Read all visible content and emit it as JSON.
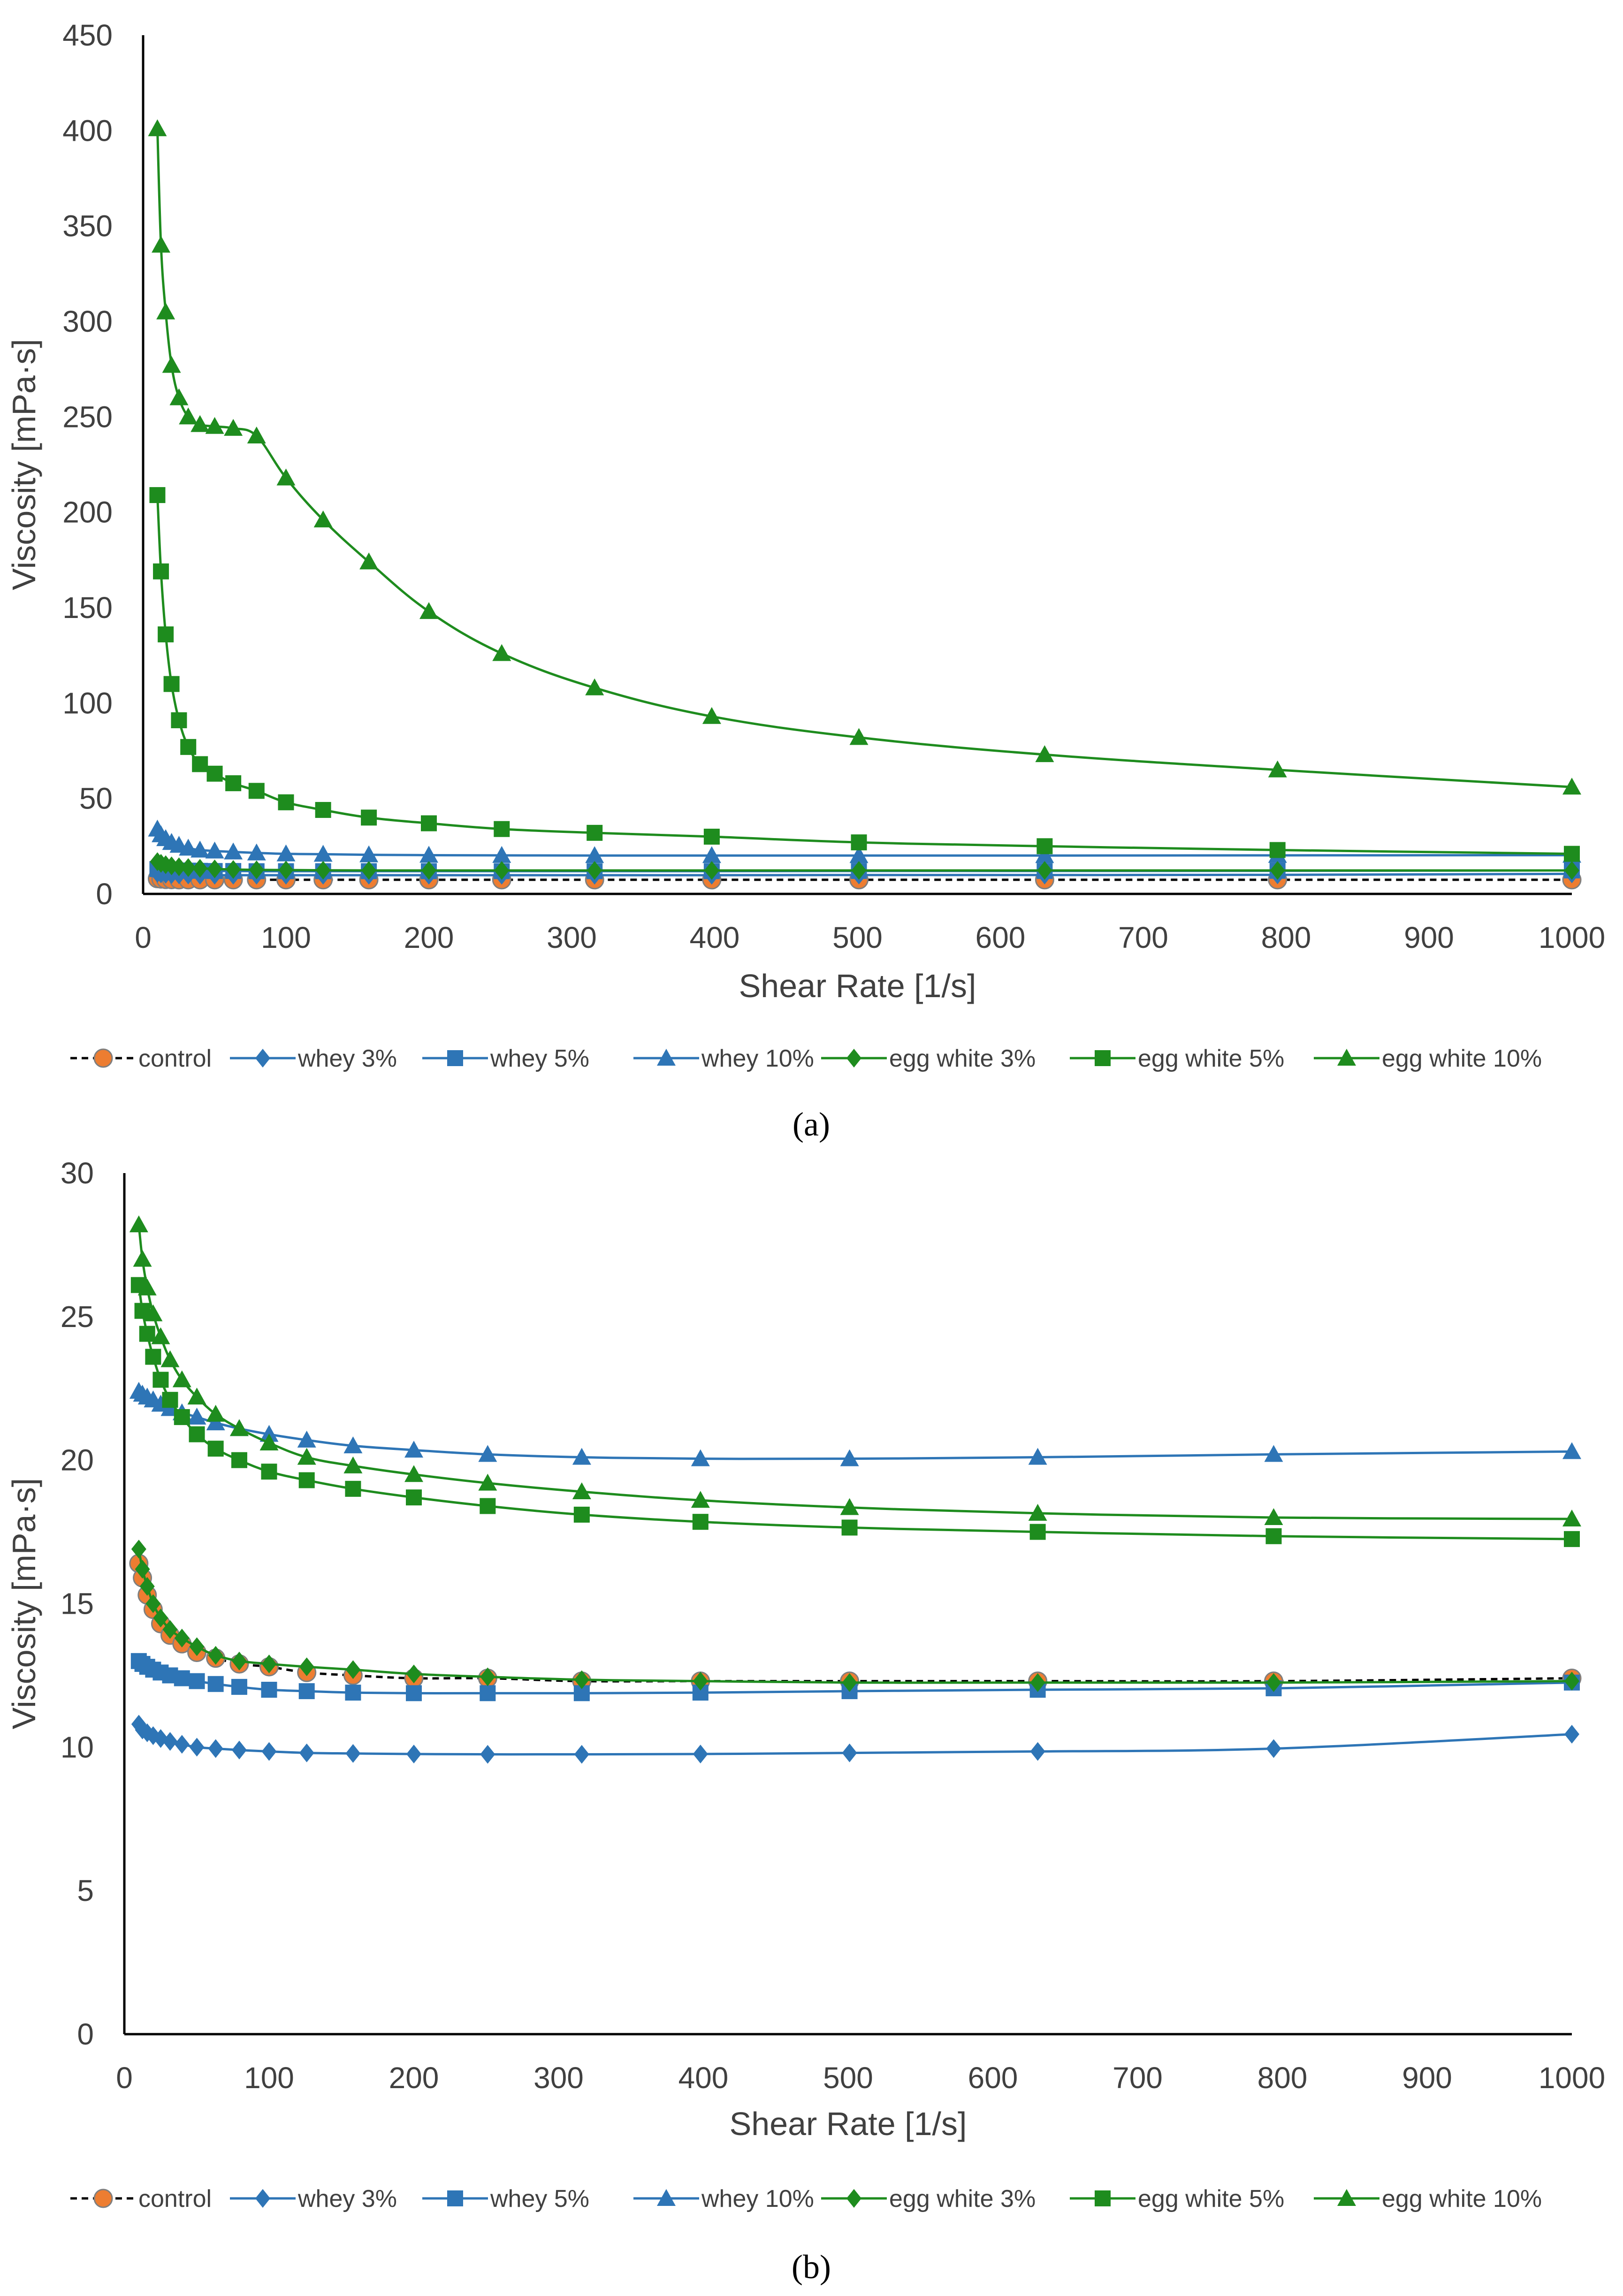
{
  "colors": {
    "control_line": "#000000",
    "control_marker": "#ED7D31",
    "blue": "#2E75B6",
    "green": "#1E8C1E",
    "axis": "#000000",
    "text": "#404040"
  },
  "chart_data": [
    {
      "type": "line",
      "panel_label": "(a)",
      "xlabel": "Shear Rate [1/s]",
      "ylabel": "Viscosity [mPa·s]",
      "xlim": [
        0,
        1000
      ],
      "ylim": [
        0,
        450
      ],
      "x_ticks": [
        "0",
        "100",
        "200",
        "300",
        "400",
        "500",
        "600",
        "700",
        "800",
        "900",
        "1000"
      ],
      "y_ticks": [
        "0",
        "50",
        "100",
        "150",
        "200",
        "250",
        "300",
        "350",
        "400",
        "450"
      ],
      "x": [
        10,
        12.5,
        15.8,
        19.9,
        25.1,
        31.6,
        39.8,
        50.1,
        63.1,
        79.4,
        100,
        126,
        158,
        200,
        251,
        316,
        398,
        501,
        631,
        794,
        1000
      ],
      "legend": [
        "control",
        "whey 3%",
        "whey 5%",
        "whey 10%",
        "egg white 3%",
        "egg white 5%",
        "egg white 10%"
      ],
      "series": [
        {
          "name": "control",
          "line": "dashed",
          "marker": "circle",
          "values": [
            8.0,
            7.8,
            7.6,
            7.5,
            7.4,
            7.4,
            7.4,
            7.4,
            7.4,
            7.4,
            7.4,
            7.4,
            7.4,
            7.4,
            7.4,
            7.4,
            7.4,
            7.4,
            7.4,
            7.4,
            7.4
          ]
        },
        {
          "name": "whey 3%",
          "line": "solid",
          "marker": "diamond",
          "values": [
            10.8,
            10.5,
            10.3,
            10.1,
            10.0,
            9.9,
            9.8,
            9.8,
            9.8,
            9.8,
            9.8,
            9.8,
            9.8,
            9.8,
            9.8,
            9.8,
            9.8,
            9.9,
            9.9,
            10.0,
            10.5
          ]
        },
        {
          "name": "whey 5%",
          "line": "solid",
          "marker": "square",
          "values": [
            13.0,
            12.8,
            12.6,
            12.4,
            12.3,
            12.2,
            12.1,
            12.0,
            12.0,
            11.9,
            11.9,
            11.9,
            11.9,
            11.9,
            11.9,
            11.9,
            11.9,
            12.0,
            12.0,
            12.1,
            12.3
          ]
        },
        {
          "name": "whey 10%",
          "line": "solid",
          "marker": "triangle",
          "values": [
            34.0,
            31.0,
            29.0,
            27.0,
            25.5,
            24.0,
            23.0,
            22.5,
            22.0,
            21.5,
            21.0,
            20.8,
            20.5,
            20.3,
            20.2,
            20.1,
            20.1,
            20.1,
            20.1,
            20.2,
            20.3
          ]
        },
        {
          "name": "egg white 3%",
          "line": "solid",
          "marker": "diamond",
          "values": [
            16.9,
            16.0,
            15.3,
            14.7,
            14.2,
            13.8,
            13.4,
            13.1,
            12.8,
            12.6,
            12.5,
            12.4,
            12.3,
            12.3,
            12.3,
            12.3,
            12.3,
            12.3,
            12.3,
            12.3,
            12.3
          ]
        },
        {
          "name": "egg white 5%",
          "line": "solid",
          "marker": "square",
          "values": [
            209.0,
            169.0,
            136.0,
            110.0,
            91.0,
            77.0,
            68.0,
            63.0,
            58.0,
            54.0,
            48.0,
            44.0,
            40.0,
            37.0,
            34.0,
            32.0,
            30.0,
            27.0,
            25.0,
            23.0,
            21.0
          ]
        },
        {
          "name": "egg white 10%",
          "line": "solid",
          "marker": "triangle",
          "values": [
            401.0,
            340.0,
            305.0,
            277.0,
            260.0,
            250.0,
            246.0,
            245.0,
            244.0,
            240.0,
            218.0,
            196.0,
            174.0,
            148.0,
            126.0,
            108.0,
            93.0,
            82.0,
            73.0,
            65.0,
            56.0
          ]
        }
      ]
    },
    {
      "type": "line",
      "panel_label": "(b)",
      "xlabel": "Shear Rate [1/s]",
      "ylabel": "Viscosity [mPa·s]",
      "xlim": [
        0,
        1000
      ],
      "ylim": [
        0,
        30
      ],
      "x_ticks": [
        "0",
        "100",
        "200",
        "300",
        "400",
        "500",
        "600",
        "700",
        "800",
        "900",
        "1000"
      ],
      "y_ticks": [
        "0",
        "5",
        "10",
        "15",
        "20",
        "25",
        "30"
      ],
      "x": [
        10,
        12.5,
        15.8,
        19.9,
        25.1,
        31.6,
        39.8,
        50.1,
        63.1,
        79.4,
        100,
        126,
        158,
        200,
        251,
        316,
        398,
        501,
        631,
        794,
        1000
      ],
      "legend": [
        "control",
        "whey 3%",
        "whey 5%",
        "whey 10%",
        "egg white 3%",
        "egg white 5%",
        "egg white 10%"
      ],
      "series": [
        {
          "name": "control",
          "line": "dashed",
          "marker": "circle",
          "values": [
            16.4,
            15.9,
            15.3,
            14.8,
            14.3,
            13.9,
            13.6,
            13.3,
            13.1,
            12.9,
            12.8,
            12.6,
            12.5,
            12.4,
            12.4,
            12.3,
            12.3,
            12.3,
            12.3,
            12.3,
            12.4
          ]
        },
        {
          "name": "whey 3%",
          "line": "solid",
          "marker": "diamond",
          "values": [
            10.8,
            10.6,
            10.5,
            10.4,
            10.3,
            10.2,
            10.1,
            10.0,
            9.95,
            9.9,
            9.85,
            9.8,
            9.78,
            9.76,
            9.75,
            9.75,
            9.76,
            9.8,
            9.85,
            9.95,
            10.45
          ]
        },
        {
          "name": "whey 5%",
          "line": "solid",
          "marker": "square",
          "values": [
            13.0,
            12.9,
            12.8,
            12.7,
            12.6,
            12.5,
            12.4,
            12.3,
            12.2,
            12.1,
            12.0,
            11.95,
            11.9,
            11.88,
            11.88,
            11.88,
            11.9,
            11.95,
            12.0,
            12.05,
            12.25
          ]
        },
        {
          "name": "whey 10%",
          "line": "solid",
          "marker": "triangle",
          "values": [
            22.4,
            22.3,
            22.2,
            22.1,
            21.95,
            21.8,
            21.65,
            21.5,
            21.3,
            21.1,
            20.9,
            20.7,
            20.5,
            20.35,
            20.2,
            20.1,
            20.05,
            20.05,
            20.1,
            20.2,
            20.3
          ]
        },
        {
          "name": "egg white 3%",
          "line": "solid",
          "marker": "diamond",
          "values": [
            16.9,
            16.2,
            15.6,
            15.0,
            14.5,
            14.1,
            13.8,
            13.5,
            13.2,
            13.0,
            12.9,
            12.8,
            12.7,
            12.55,
            12.45,
            12.35,
            12.3,
            12.25,
            12.25,
            12.25,
            12.3
          ]
        },
        {
          "name": "egg white 5%",
          "line": "solid",
          "marker": "square",
          "values": [
            26.1,
            25.2,
            24.4,
            23.6,
            22.8,
            22.1,
            21.5,
            20.9,
            20.4,
            20.0,
            19.6,
            19.3,
            19.0,
            18.7,
            18.4,
            18.1,
            17.85,
            17.65,
            17.5,
            17.35,
            17.25
          ]
        },
        {
          "name": "egg white 10%",
          "line": "solid",
          "marker": "triangle",
          "values": [
            28.2,
            27.0,
            26.0,
            25.1,
            24.3,
            23.5,
            22.8,
            22.2,
            21.6,
            21.1,
            20.6,
            20.1,
            19.8,
            19.5,
            19.2,
            18.9,
            18.6,
            18.35,
            18.15,
            18.0,
            17.95
          ]
        }
      ]
    }
  ]
}
